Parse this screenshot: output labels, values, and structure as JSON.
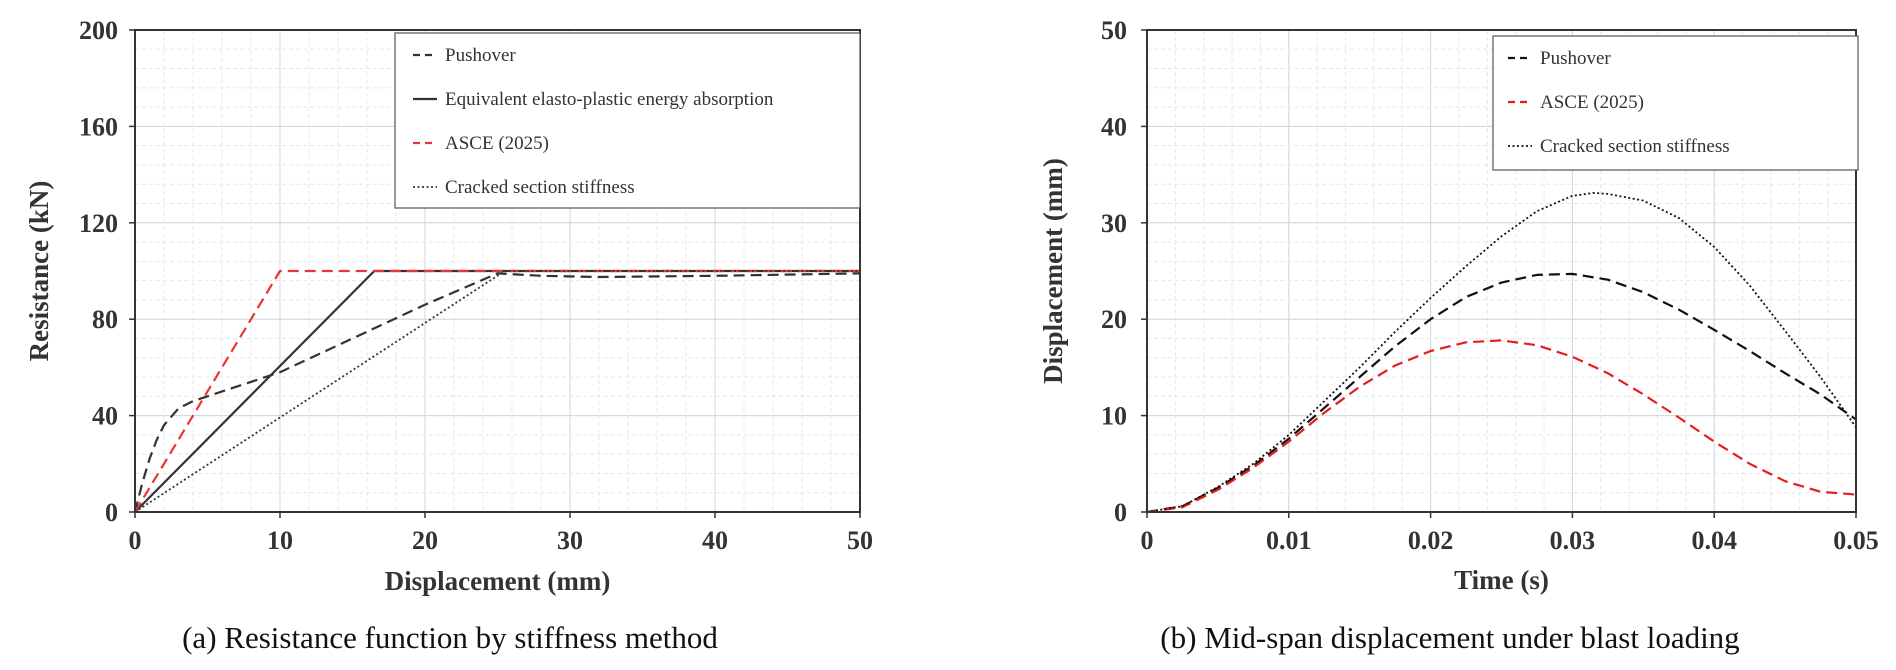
{
  "chart_data": [
    {
      "type": "line",
      "caption": "(a) Resistance function by stiffness method",
      "xlabel": "Displacement (mm)",
      "ylabel": "Resistance (kN)",
      "xlim": [
        0,
        50
      ],
      "ylim": [
        0,
        200
      ],
      "x_ticks": [
        0,
        10,
        20,
        30,
        40,
        50
      ],
      "y_ticks": [
        0,
        40,
        80,
        120,
        160,
        200
      ],
      "grid": true,
      "legend_position": "top-right",
      "series": [
        {
          "name": "Pushover",
          "style": "dashed",
          "color": "#333333",
          "x": [
            0,
            0.5,
            1,
            1.5,
            2,
            3,
            4,
            5,
            7,
            10,
            15,
            20,
            25,
            28,
            32,
            40,
            50
          ],
          "y": [
            0,
            12,
            22,
            30,
            36,
            43,
            46,
            48,
            52,
            58,
            72,
            86,
            99,
            98,
            97.5,
            98,
            99
          ]
        },
        {
          "name": "Equivalent elasto-plastic energy absorption",
          "style": "solid",
          "color": "#333333",
          "x": [
            0,
            16.5,
            50
          ],
          "y": [
            0,
            100,
            100
          ]
        },
        {
          "name": "ASCE (2025)",
          "style": "dashed",
          "color": "#e83535",
          "x": [
            0,
            10,
            50
          ],
          "y": [
            0,
            100,
            100
          ]
        },
        {
          "name": "Cracked section stiffness",
          "style": "dotted",
          "color": "#333333",
          "x": [
            0,
            25.5,
            50
          ],
          "y": [
            0,
            100,
            100
          ]
        }
      ]
    },
    {
      "type": "line",
      "caption": "(b) Mid-span displacement under blast loading",
      "xlabel": "Time (s)",
      "ylabel": "Displacement (mm)",
      "xlim": [
        0,
        0.05
      ],
      "ylim": [
        0,
        50
      ],
      "x_ticks": [
        0,
        0.01,
        0.02,
        0.03,
        0.04,
        0.05
      ],
      "x_tick_labels": [
        "0",
        "0.01",
        "0.02",
        "0.03",
        "0.04",
        "0.05"
      ],
      "y_ticks": [
        0,
        10,
        20,
        30,
        40,
        50
      ],
      "grid": true,
      "legend_position": "top-right",
      "series": [
        {
          "name": "Pushover",
          "style": "dashed",
          "color": "#111111",
          "x": [
            0,
            0.0025,
            0.005,
            0.0075,
            0.01,
            0.0125,
            0.015,
            0.0175,
            0.02,
            0.0225,
            0.025,
            0.0275,
            0.03,
            0.0325,
            0.035,
            0.0375,
            0.04,
            0.0425,
            0.045,
            0.0475,
            0.05
          ],
          "y": [
            0,
            0.6,
            2.5,
            4.8,
            7.6,
            10.8,
            14,
            17.2,
            20,
            22.3,
            23.8,
            24.6,
            24.7,
            24.1,
            22.8,
            21,
            18.9,
            16.7,
            14.4,
            12.2,
            9.6
          ]
        },
        {
          "name": "ASCE (2025)",
          "style": "dashed",
          "color": "#e41e1e",
          "x": [
            0,
            0.0025,
            0.005,
            0.0075,
            0.01,
            0.0125,
            0.015,
            0.0175,
            0.02,
            0.0225,
            0.025,
            0.0275,
            0.03,
            0.0325,
            0.035,
            0.0375,
            0.04,
            0.0425,
            0.045,
            0.0475,
            0.05
          ],
          "y": [
            0,
            0.5,
            2.3,
            4.6,
            7.3,
            10.3,
            13,
            15.2,
            16.7,
            17.6,
            17.8,
            17.3,
            16.1,
            14.4,
            12.2,
            9.8,
            7.3,
            5,
            3.2,
            2.1,
            1.8
          ]
        },
        {
          "name": "Cracked section stiffness",
          "style": "dotted",
          "color": "#111111",
          "x": [
            0,
            0.0025,
            0.005,
            0.0075,
            0.01,
            0.0125,
            0.015,
            0.0175,
            0.02,
            0.0225,
            0.025,
            0.0275,
            0.03,
            0.0315,
            0.0325,
            0.035,
            0.0375,
            0.04,
            0.0425,
            0.045,
            0.0475,
            0.05
          ],
          "y": [
            0,
            0.6,
            2.6,
            5,
            8,
            11.5,
            15,
            18.7,
            22.2,
            25.5,
            28.6,
            31.2,
            32.8,
            33.1,
            33,
            32.3,
            30.5,
            27.5,
            23.5,
            18.8,
            14,
            8.8
          ]
        }
      ]
    }
  ]
}
